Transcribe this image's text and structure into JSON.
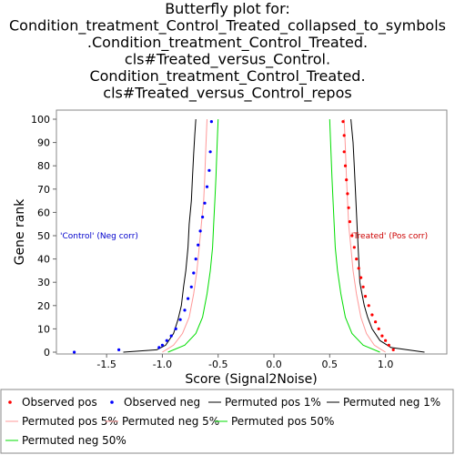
{
  "chart_data": {
    "type": "scatter",
    "title_lines": [
      "Butterfly plot for:",
      "Condition_treatment_Control_Treated_collapsed_to_symbols",
      ".Condition_treatment_Control_Treated.",
      "cls#Treated_versus_Control.",
      "Condition_treatment_Control_Treated.",
      "cls#Treated_versus_Control_repos"
    ],
    "xlabel": "Score (Signal2Noise)",
    "ylabel": "Gene rank",
    "xlim": [
      -1.95,
      1.55
    ],
    "ylim": [
      0,
      100
    ],
    "x_ticks": [
      -1.5,
      -1.0,
      -0.5,
      0.0,
      0.5,
      1.0
    ],
    "x_tick_labels": [
      "-1.5",
      "-1.0",
      "-0.5",
      "0.0",
      "0.5",
      "1.0"
    ],
    "y_ticks": [
      0,
      10,
      20,
      30,
      40,
      50,
      60,
      70,
      80,
      90,
      100
    ],
    "y_tick_labels": [
      "0",
      "10",
      "20",
      "30",
      "40",
      "50",
      "60",
      "70",
      "80",
      "90",
      "100"
    ],
    "grid": false,
    "legend_position": "bottom",
    "annotations": [
      {
        "text": "'Control' (Neg corr)",
        "color": "#0000cc",
        "x": -1.95,
        "y": 50
      },
      {
        "text": "'Treated' (Pos corr)",
        "color": "#cc0000",
        "x": 0.66,
        "y": 50
      }
    ],
    "series": [
      {
        "name": "Observed pos",
        "kind": "points",
        "color": "#ff0000",
        "x": [
          1.07,
          1.03,
          1.0,
          0.97,
          0.94,
          0.91,
          0.88,
          0.85,
          0.82,
          0.8,
          0.78,
          0.76,
          0.74,
          0.72,
          0.7,
          0.68,
          0.67,
          0.66,
          0.65,
          0.64,
          0.63,
          0.63,
          0.62
        ],
        "y": [
          1,
          3,
          5,
          7,
          10,
          13,
          16,
          20,
          24,
          28,
          32,
          36,
          40,
          45,
          50,
          56,
          62,
          68,
          74,
          80,
          86,
          93,
          99
        ]
      },
      {
        "name": "Observed neg",
        "kind": "points",
        "color": "#0000ff",
        "x": [
          -1.79,
          -1.39,
          -1.03,
          -1.0,
          -0.96,
          -0.92,
          -0.88,
          -0.84,
          -0.8,
          -0.77,
          -0.74,
          -0.72,
          -0.7,
          -0.68,
          -0.66,
          -0.64,
          -0.62,
          -0.6,
          -0.58,
          -0.57,
          -0.56
        ],
        "y": [
          0,
          1,
          2,
          3,
          5,
          7,
          10,
          14,
          18,
          23,
          28,
          34,
          40,
          46,
          52,
          58,
          64,
          71,
          78,
          86,
          99
        ]
      },
      {
        "name": "Permuted pos 1%",
        "kind": "line",
        "color": "#000000",
        "x": [
          1.35,
          1.05,
          0.95,
          0.88,
          0.84,
          0.81,
          0.79,
          0.77,
          0.76,
          0.75,
          0.74,
          0.73,
          0.72,
          0.71,
          0.7,
          0.69
        ],
        "y": [
          0,
          2,
          5,
          10,
          15,
          20,
          25,
          30,
          40,
          50,
          60,
          70,
          80,
          90,
          95,
          100
        ]
      },
      {
        "name": "Permuted neg 1%",
        "kind": "line",
        "color": "#000000",
        "x": [
          -1.35,
          -1.05,
          -0.97,
          -0.9,
          -0.86,
          -0.83,
          -0.81,
          -0.79,
          -0.77,
          -0.76,
          -0.74,
          -0.73,
          -0.72,
          -0.71,
          -0.7
        ],
        "y": [
          0,
          1,
          3,
          8,
          14,
          20,
          28,
          35,
          45,
          55,
          65,
          75,
          85,
          93,
          100
        ]
      },
      {
        "name": "Permuted pos 5%",
        "kind": "line",
        "color": "#ff9999",
        "x": [
          1.0,
          0.9,
          0.83,
          0.78,
          0.74,
          0.71,
          0.69,
          0.67,
          0.66,
          0.65,
          0.64,
          0.63
        ],
        "y": [
          0,
          3,
          8,
          15,
          25,
          35,
          45,
          55,
          65,
          75,
          88,
          100
        ]
      },
      {
        "name": "Permuted neg 5%",
        "kind": "line",
        "color": "#ff9999",
        "x": [
          -1.0,
          -0.9,
          -0.82,
          -0.76,
          -0.72,
          -0.69,
          -0.67,
          -0.65,
          -0.63,
          -0.62,
          -0.61,
          -0.6
        ],
        "y": [
          0,
          3,
          8,
          15,
          25,
          35,
          45,
          55,
          65,
          75,
          88,
          100
        ]
      },
      {
        "name": "Permuted pos 50%",
        "kind": "line",
        "color": "#00dd00",
        "x": [
          0.95,
          0.8,
          0.7,
          0.64,
          0.6,
          0.57,
          0.55,
          0.54,
          0.53,
          0.52,
          0.51,
          0.5
        ],
        "y": [
          0,
          3,
          8,
          15,
          25,
          35,
          45,
          55,
          65,
          75,
          88,
          100
        ]
      },
      {
        "name": "Permuted neg 50%",
        "kind": "line",
        "color": "#00dd00",
        "x": [
          -0.95,
          -0.8,
          -0.7,
          -0.64,
          -0.6,
          -0.57,
          -0.55,
          -0.54,
          -0.53,
          -0.52,
          -0.51,
          -0.5
        ],
        "y": [
          0,
          3,
          8,
          15,
          25,
          35,
          45,
          55,
          65,
          75,
          88,
          100
        ]
      }
    ]
  }
}
